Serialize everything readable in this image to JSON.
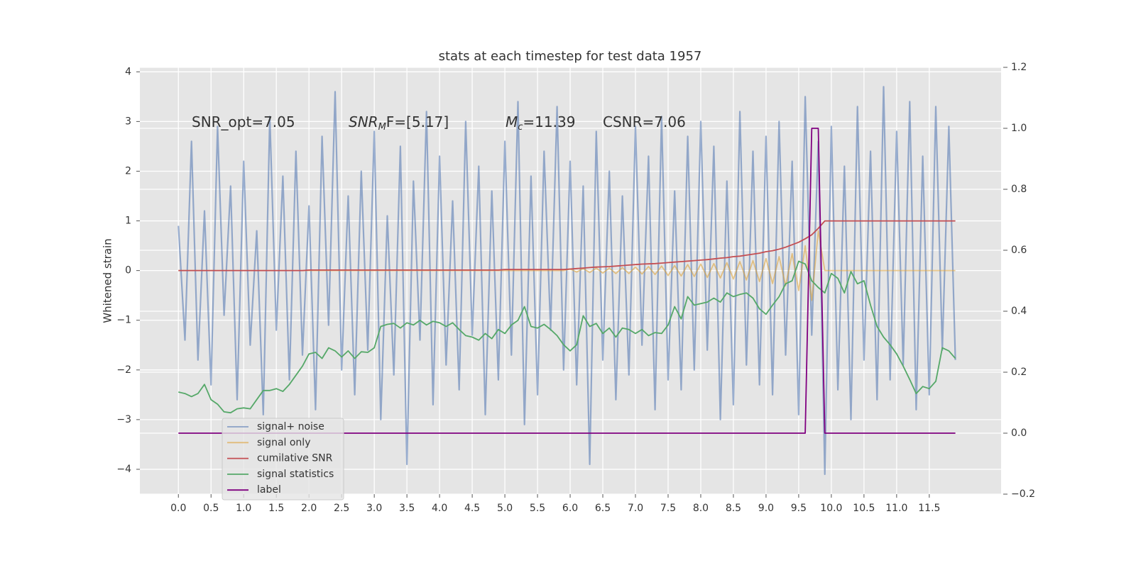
{
  "chart_data": {
    "type": "line",
    "title": "stats at each timestep for test data 1957",
    "ylabel": "Whitened strain",
    "annotations": [
      [
        "SNR_opt=7.05"
      ],
      [
        "SNR",
        "M",
        "F=[5.17]"
      ],
      [
        "M",
        "c",
        "=11.39"
      ],
      [
        "CSNR=7.06"
      ]
    ],
    "x": [
      0.0,
      0.1,
      0.2,
      0.3,
      0.4,
      0.5,
      0.6,
      0.7,
      0.8,
      0.9,
      1.0,
      1.1,
      1.2,
      1.3,
      1.4,
      1.5,
      1.6,
      1.7,
      1.8,
      1.9,
      2.0,
      2.1,
      2.2,
      2.3,
      2.4,
      2.5,
      2.6,
      2.7,
      2.8,
      2.9,
      3.0,
      3.1,
      3.2,
      3.3,
      3.4,
      3.5,
      3.6,
      3.7,
      3.8,
      3.9,
      4.0,
      4.1,
      4.2,
      4.3,
      4.4,
      4.5,
      4.6,
      4.7,
      4.8,
      4.9,
      5.0,
      5.1,
      5.2,
      5.3,
      5.4,
      5.5,
      5.6,
      5.7,
      5.8,
      5.9,
      6.0,
      6.1,
      6.2,
      6.3,
      6.4,
      6.5,
      6.6,
      6.7,
      6.8,
      6.9,
      7.0,
      7.1,
      7.2,
      7.3,
      7.4,
      7.5,
      7.6,
      7.7,
      7.8,
      7.9,
      8.0,
      8.1,
      8.2,
      8.3,
      8.4,
      8.5,
      8.6,
      8.7,
      8.8,
      8.9,
      9.0,
      9.1,
      9.2,
      9.3,
      9.4,
      9.5,
      9.6,
      9.7,
      9.8,
      9.9,
      10.0,
      10.1,
      10.2,
      10.3,
      10.4,
      10.5,
      10.6,
      10.7,
      10.8,
      10.9,
      11.0,
      11.1,
      11.2,
      11.3,
      11.4,
      11.5,
      11.6,
      11.7,
      11.8,
      11.9
    ],
    "series": [
      {
        "name": "signal+ noise",
        "color": "#4c72b0",
        "values": [
          0.9,
          -1.4,
          2.6,
          -1.8,
          1.2,
          -2.3,
          2.9,
          -0.9,
          1.7,
          -2.6,
          2.2,
          -1.5,
          0.8,
          -2.9,
          3.1,
          -1.2,
          1.9,
          -2.2,
          2.4,
          -1.7,
          1.3,
          -2.8,
          2.7,
          -1.1,
          3.6,
          -2.0,
          1.5,
          -2.5,
          2.0,
          -1.6,
          2.8,
          -3.0,
          1.1,
          -2.1,
          2.5,
          -3.9,
          1.8,
          -1.4,
          3.2,
          -2.7,
          2.3,
          -1.9,
          1.4,
          -2.4,
          3.0,
          -1.3,
          2.1,
          -2.9,
          1.6,
          -2.2,
          2.6,
          -1.7,
          3.4,
          -3.1,
          1.9,
          -2.5,
          2.4,
          -1.2,
          3.3,
          -2.0,
          2.2,
          -2.3,
          1.7,
          -3.9,
          2.8,
          -1.8,
          2.0,
          -2.6,
          1.5,
          -2.1,
          2.9,
          -1.5,
          2.3,
          -2.8,
          3.1,
          -2.2,
          1.6,
          -2.4,
          2.7,
          -2.0,
          3.0,
          -1.6,
          2.5,
          -3.0,
          1.8,
          -2.7,
          3.2,
          -1.9,
          2.4,
          -2.3,
          2.7,
          -2.5,
          3.0,
          -1.7,
          2.2,
          -2.9,
          3.5,
          -1.3,
          2.6,
          -4.1,
          2.9,
          -2.4,
          2.1,
          -3.0,
          3.3,
          -1.8,
          2.4,
          -2.6,
          3.7,
          -2.2,
          2.8,
          -1.9,
          3.4,
          -2.8,
          2.3,
          -2.5,
          3.3,
          -1.6,
          2.9,
          -1.8
        ]
      },
      {
        "name": "signal only",
        "color": "#dd9f30",
        "values": [
          0,
          0,
          0,
          0,
          0,
          0,
          0,
          0,
          0,
          0,
          0,
          0,
          0,
          0,
          0,
          0,
          0,
          0,
          0,
          0,
          0,
          0,
          0,
          0,
          0,
          0,
          0,
          0,
          0,
          0,
          0,
          0,
          0,
          0,
          0,
          0,
          0,
          0,
          0,
          0,
          0,
          0,
          0,
          0,
          0,
          0,
          0,
          0,
          0,
          0,
          0,
          0,
          0,
          0,
          0,
          0,
          0,
          0,
          0,
          0,
          0.03,
          -0.03,
          0.04,
          -0.04,
          0.05,
          -0.05,
          0.05,
          -0.06,
          0.06,
          -0.06,
          0.07,
          -0.07,
          0.08,
          -0.08,
          0.09,
          -0.1,
          0.1,
          -0.11,
          0.12,
          -0.12,
          0.13,
          -0.14,
          0.14,
          -0.15,
          0.16,
          -0.17,
          0.18,
          -0.19,
          0.2,
          -0.22,
          0.24,
          -0.26,
          0.28,
          -0.3,
          0.34,
          -0.4,
          0.5,
          -0.6,
          0.8,
          0,
          0,
          0,
          0,
          0,
          0,
          0,
          0,
          0,
          0,
          0,
          0,
          0,
          0,
          0,
          0,
          0,
          0,
          0,
          0,
          0
        ]
      },
      {
        "name": "cumilative SNR",
        "color": "#c44e52",
        "values": [
          0,
          0,
          0,
          0,
          0,
          0,
          0,
          0,
          0,
          0,
          0,
          0,
          0,
          0,
          0,
          0,
          0,
          0,
          0,
          0,
          0.01,
          0.01,
          0.01,
          0.01,
          0.01,
          0.01,
          0.01,
          0.01,
          0.01,
          0.01,
          0.01,
          0.01,
          0.01,
          0.01,
          0.01,
          0.01,
          0.01,
          0.01,
          0.01,
          0.01,
          0.01,
          0.01,
          0.01,
          0.01,
          0.01,
          0.01,
          0.01,
          0.01,
          0.01,
          0.01,
          0.02,
          0.02,
          0.02,
          0.02,
          0.02,
          0.02,
          0.02,
          0.02,
          0.02,
          0.02,
          0.03,
          0.04,
          0.05,
          0.06,
          0.07,
          0.075,
          0.08,
          0.09,
          0.1,
          0.11,
          0.12,
          0.13,
          0.135,
          0.14,
          0.15,
          0.16,
          0.17,
          0.18,
          0.19,
          0.2,
          0.21,
          0.22,
          0.235,
          0.25,
          0.26,
          0.28,
          0.29,
          0.31,
          0.33,
          0.35,
          0.38,
          0.4,
          0.43,
          0.47,
          0.52,
          0.57,
          0.64,
          0.72,
          0.85,
          1.0,
          1.0,
          1.0,
          1.0,
          1.0,
          1.0,
          1.0,
          1.0,
          1.0,
          1.0,
          1.0,
          1.0,
          1.0,
          1.0,
          1.0,
          1.0,
          1.0,
          1.0,
          1.0,
          1.0,
          1.0
        ]
      },
      {
        "name": "signal statistics",
        "color": "#55a868",
        "axis": "y2",
        "values": [
          0.135,
          0.13,
          0.12,
          0.13,
          0.16,
          0.11,
          0.095,
          0.07,
          0.067,
          0.08,
          0.083,
          0.08,
          0.11,
          0.14,
          0.14,
          0.146,
          0.137,
          0.16,
          0.19,
          0.22,
          0.26,
          0.265,
          0.245,
          0.28,
          0.27,
          0.25,
          0.27,
          0.245,
          0.267,
          0.265,
          0.28,
          0.35,
          0.357,
          0.36,
          0.345,
          0.362,
          0.355,
          0.37,
          0.355,
          0.367,
          0.362,
          0.35,
          0.362,
          0.34,
          0.32,
          0.315,
          0.305,
          0.327,
          0.31,
          0.34,
          0.327,
          0.355,
          0.37,
          0.415,
          0.35,
          0.345,
          0.357,
          0.34,
          0.32,
          0.29,
          0.27,
          0.29,
          0.385,
          0.35,
          0.36,
          0.327,
          0.345,
          0.315,
          0.345,
          0.34,
          0.327,
          0.34,
          0.32,
          0.33,
          0.327,
          0.355,
          0.415,
          0.375,
          0.448,
          0.42,
          0.425,
          0.43,
          0.443,
          0.43,
          0.46,
          0.448,
          0.455,
          0.46,
          0.443,
          0.408,
          0.39,
          0.42,
          0.448,
          0.49,
          0.5,
          0.564,
          0.555,
          0.5,
          0.478,
          0.46,
          0.524,
          0.508,
          0.46,
          0.53,
          0.49,
          0.5,
          0.42,
          0.35,
          0.315,
          0.29,
          0.26,
          0.22,
          0.176,
          0.13,
          0.153,
          0.146,
          0.17,
          0.28,
          0.27,
          0.245
        ]
      },
      {
        "name": "label",
        "color": "#800080",
        "axis": "y2",
        "values": [
          0,
          0,
          0,
          0,
          0,
          0,
          0,
          0,
          0,
          0,
          0,
          0,
          0,
          0,
          0,
          0,
          0,
          0,
          0,
          0,
          0,
          0,
          0,
          0,
          0,
          0,
          0,
          0,
          0,
          0,
          0,
          0,
          0,
          0,
          0,
          0,
          0,
          0,
          0,
          0,
          0,
          0,
          0,
          0,
          0,
          0,
          0,
          0,
          0,
          0,
          0,
          0,
          0,
          0,
          0,
          0,
          0,
          0,
          0,
          0,
          0,
          0,
          0,
          0,
          0,
          0,
          0,
          0,
          0,
          0,
          0,
          0,
          0,
          0,
          0,
          0,
          0,
          0,
          0,
          0,
          0,
          0,
          0,
          0,
          0,
          0,
          0,
          0,
          0,
          0,
          0,
          0,
          0,
          0,
          0,
          0,
          0,
          1,
          1,
          0,
          0,
          0,
          0,
          0,
          0,
          0,
          0,
          0,
          0,
          0,
          0,
          0,
          0,
          0,
          0,
          0,
          0,
          0,
          0,
          0
        ]
      }
    ],
    "xlim": [
      -0.59,
      12.6
    ],
    "ylim": [
      -4.5,
      4.09
    ],
    "y2lim": [
      -0.2,
      1.2
    ],
    "xticks": [
      {
        "value": 0,
        "label": "0.0"
      },
      0.5,
      {
        "value": 1,
        "label": "1.0"
      },
      1.5,
      {
        "value": 2,
        "label": "2.0"
      },
      2.5,
      {
        "value": 3,
        "label": "3.0"
      },
      3.5,
      {
        "value": 4,
        "label": "4.0"
      },
      4.5,
      {
        "value": 5,
        "label": "5.0"
      },
      5.5,
      {
        "value": 6,
        "label": "6.0"
      },
      6.5,
      {
        "value": 7,
        "label": "7.0"
      },
      7.5,
      {
        "value": 8,
        "label": "8.0"
      },
      8.5,
      {
        "value": 9,
        "label": "9.0"
      },
      9.5,
      {
        "value": 10,
        "label": "10.0"
      },
      10.5,
      {
        "value": 11,
        "label": "11.0"
      },
      11.5
    ],
    "yticks": [
      {
        "value": -4,
        "label": "−4"
      },
      {
        "value": -3,
        "label": "−3"
      },
      {
        "value": -2,
        "label": "−2"
      },
      {
        "value": -1,
        "label": "−1"
      },
      0,
      1,
      2,
      3,
      4
    ],
    "y2ticks": [
      {
        "value": -0.2,
        "label": "−0.2"
      },
      {
        "value": 0,
        "label": "0.0"
      },
      0.2,
      0.4,
      0.6,
      0.8,
      {
        "value": 1,
        "label": "1.0"
      },
      1.2
    ],
    "grid": true,
    "legend_loc": "lower left"
  }
}
